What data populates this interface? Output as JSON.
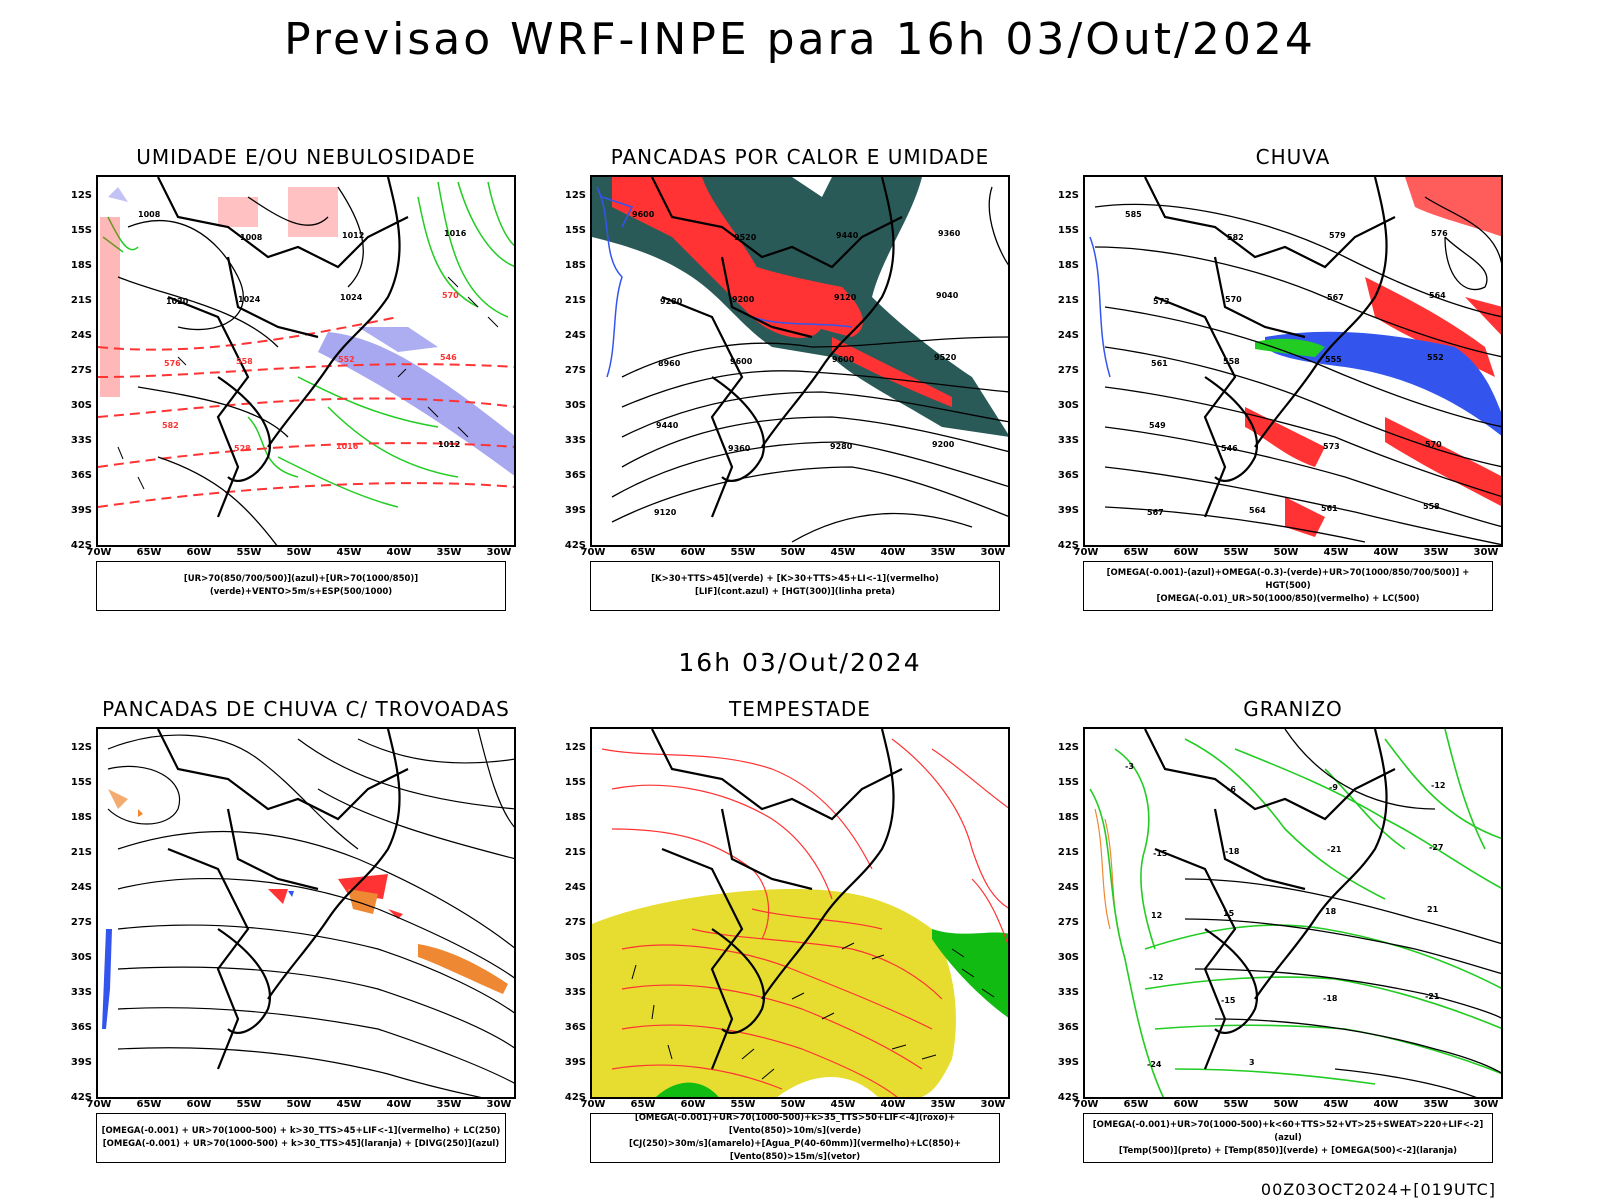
{
  "title": "Previsao WRF-INPE  para 16h 03/Out/2024",
  "subtitle": "16h 03/Out/2024",
  "footer": "00Z03OCT2024+[019UTC]",
  "lat_labels": [
    "12S",
    "15S",
    "18S",
    "21S",
    "24S",
    "27S",
    "30S",
    "33S",
    "36S",
    "39S",
    "42S"
  ],
  "lon_labels": [
    "70W",
    "65W",
    "60W",
    "55W",
    "50W",
    "45W",
    "40W",
    "35W",
    "30W"
  ],
  "panels": [
    {
      "title": "UMIDADE E/OU NEBULOSIDADE",
      "legend": [
        "[UR>70(850/700/500)](azul)+[UR>70(1000/850)](verde)+VENTO>5m/s+ESP(500/1000)"
      ]
    },
    {
      "title": "PANCADAS POR CALOR E UMIDADE",
      "legend": [
        "[K>30+TTS>45](verde)  +  [K>30+TTS>45+LI<-1](vermelho)",
        "[LIF](cont.azul)  +  [HGT(300)](linha preta)"
      ]
    },
    {
      "title": "CHUVA",
      "legend": [
        "[OMEGA(-0.001)-(azul)+OMEGA(-0.3)-(verde)+UR>70(1000/850/700/500)]  +  HGT(500)",
        "[OMEGA(-0.01)_UR>50(1000/850)(vermelho) + LC(500)"
      ]
    },
    {
      "title": "PANCADAS DE CHUVA C/ TROVOADAS",
      "legend": [
        "[OMEGA(-0.001)  +  UR>70(1000-500)  +  k>30_TTS>45+LIF<-1](vermelho)  +  LC(250)",
        "[OMEGA(-0.001)  +  UR>70(1000-500)  +  k>30_TTS>45](laranja)  +  [DIVG(250)](azul)"
      ]
    },
    {
      "title": "TEMPESTADE",
      "legend": [
        "[OMEGA(-0.001)+UR>70(1000-500)+k>35_TTS>50+LIF<-4](roxo)+[Vento(850)>10m/s](verde)",
        "[CJ(250)>30m/s](amarelo)+[Agua_P(40-60mm)](vermelho)+LC(850)+[Vento(850)>15m/s](vetor)"
      ]
    },
    {
      "title": "GRANIZO",
      "legend": [
        "[OMEGA(-0.001)+UR>70(1000-500)+k<60+TTS>52+VT>25+SWEAT>220+LIF<-2](azul)",
        "[Temp(500)](preto)  +  [Temp(850)](verde)  +  [OMEGA(500)<-2](laranja)"
      ]
    }
  ],
  "contour_labels": {
    "p1": [
      "1008",
      "1008",
      "1012",
      "1016",
      "1020",
      "1024",
      "1024",
      "570",
      "576",
      "558",
      "552",
      "546",
      "582",
      "528",
      "1016",
      "1012"
    ],
    "p2": [
      "9600",
      "9520",
      "9440",
      "9360",
      "9280",
      "9200",
      "9120",
      "9040",
      "8960",
      "9600",
      "9600",
      "9520",
      "9440",
      "9360",
      "9280",
      "9200",
      "9120"
    ],
    "p3": [
      "585",
      "582",
      "579",
      "576",
      "573",
      "570",
      "567",
      "564",
      "561",
      "558",
      "555",
      "552",
      "549",
      "546",
      "573",
      "570",
      "567",
      "564",
      "561",
      "558"
    ],
    "p6": [
      "-3",
      "-6",
      "-9",
      "-12",
      "-15",
      "-18",
      "-21",
      "-27",
      "12",
      "15",
      "18",
      "21",
      "-12",
      "-15",
      "-18",
      "-21",
      "-24",
      "3"
    ]
  },
  "colors": {
    "blue_area": "#9999ee",
    "green": "#22cc22",
    "red": "#ff3333",
    "darkteal": "#2a5a58",
    "orange": "#ee8833",
    "yellow": "#e6dd30",
    "blue": "#3355ee",
    "dkgreen": "#11bb11"
  }
}
